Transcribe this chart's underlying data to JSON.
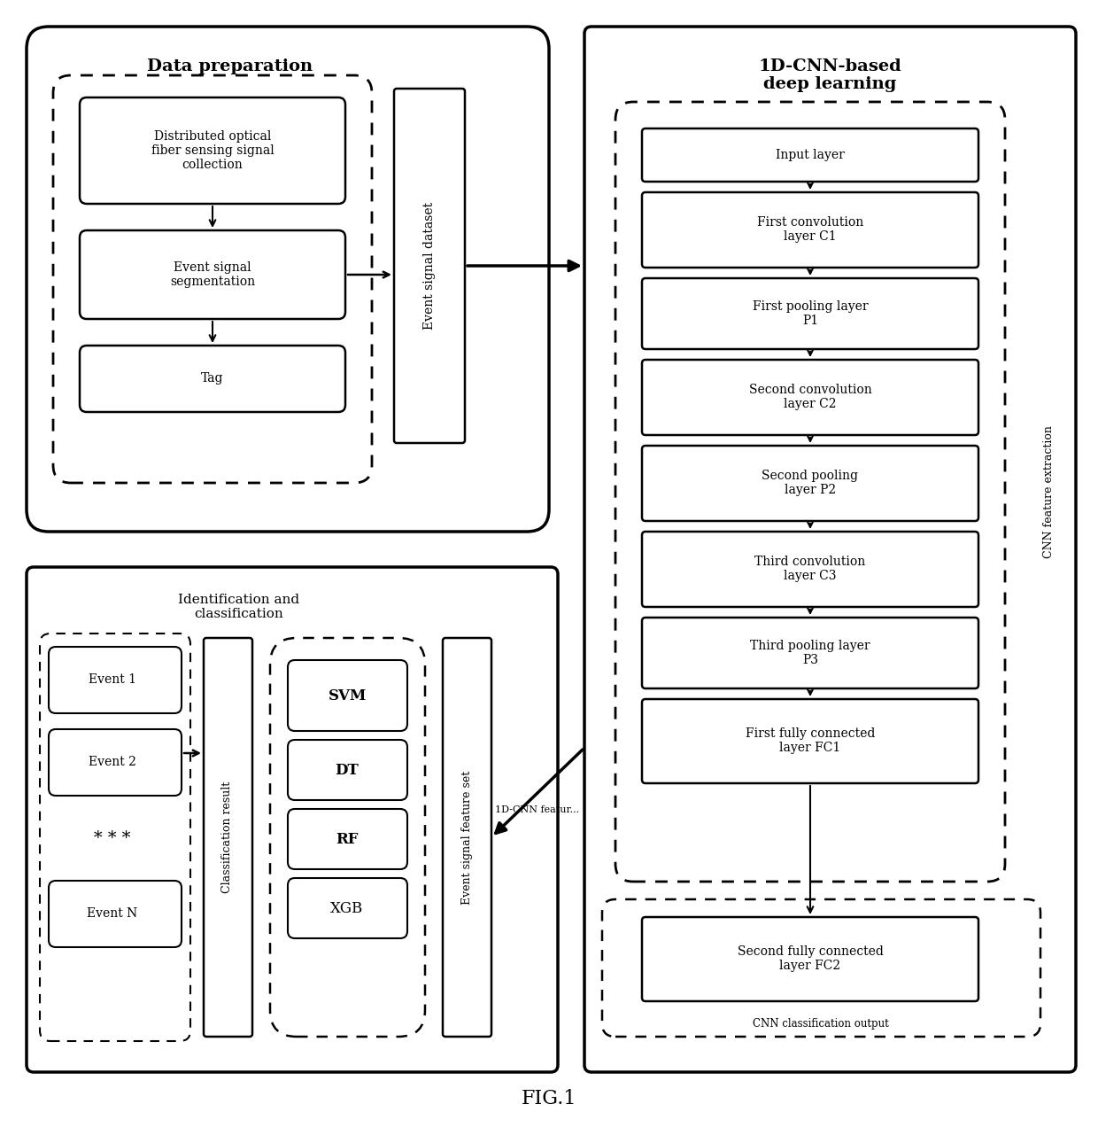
{
  "bg_color": "#ffffff",
  "fig_title": "FIG.1",
  "data_prep_title": "Data preparation",
  "cnn_title": "1D-CNN-based\ndeep learning",
  "id_class_title": "Identification and\nclassification",
  "dp_boxes": [
    "Distributed optical\nfiber sensing signal\ncollection",
    "Event signal\nsegmentation",
    "Tag"
  ],
  "cnn_boxes": [
    "Input layer",
    "First convolution\nlayer C1",
    "First pooling layer\nP1",
    "Second convolution\nlayer C2",
    "Second pooling\nlayer P2",
    "Third convolution\nlayer C3",
    "Third pooling layer\nP3",
    "First fully connected\nlayer FC1"
  ],
  "cnn_box2": "Second fully connected\nlayer FC2",
  "cnn_label1": "CNN feature extraction",
  "cnn_label2": "CNN classification output",
  "event_boxes": [
    "Event 1",
    "Event 2",
    "* * *",
    "Event N"
  ],
  "classifier_boxes": [
    "SVM",
    "DT",
    "RF",
    "XGB"
  ],
  "vertical_label1": "Event signal dataset",
  "vertical_label2": "Classification result",
  "vertical_label3": "Event signal feature set",
  "arrow_label": "1D-CNN featur..."
}
